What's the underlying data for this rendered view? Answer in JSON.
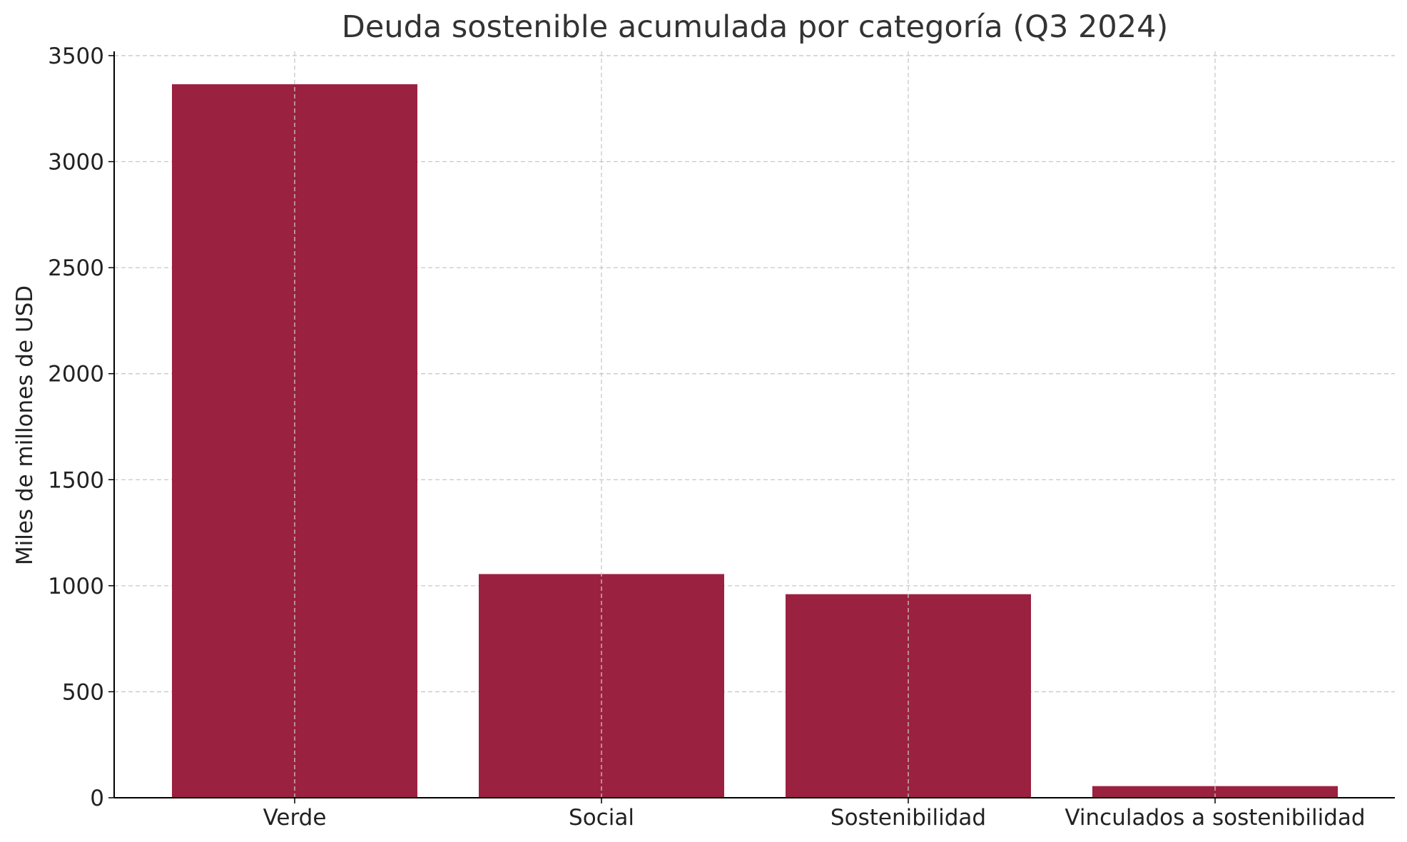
{
  "chart_data": {
    "type": "bar",
    "title": "Deuda sostenible acumulada por categoría (Q3 2024)",
    "xlabel": "",
    "ylabel": "Miles de millones de USD",
    "categories": [
      "Verde",
      "Social",
      "Sostenibilidad",
      "Vinculados a sostenibilidad"
    ],
    "values": [
      3365,
      1055,
      960,
      55
    ],
    "ylim": [
      0,
      3520
    ],
    "yticks": [
      0,
      500,
      1000,
      1500,
      2000,
      2500,
      3000,
      3500
    ],
    "grid": true,
    "bar_color": "#9b2140",
    "grid_color": "#c8c8c8",
    "axis_color": "#000000",
    "text_color": "#222222",
    "title_color": "#333333"
  }
}
